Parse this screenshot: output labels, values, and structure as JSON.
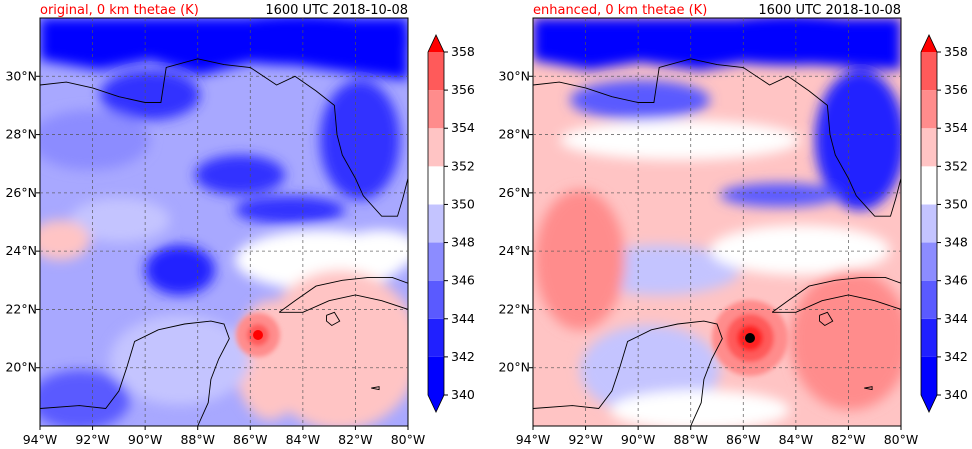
{
  "panels": [
    {
      "title": "original, 0 km thetae (K)",
      "time": "1600 UTC 2018-10-08",
      "storm_center": {
        "lon": -85.8,
        "lat": 21.3
      }
    },
    {
      "title": "enhanced, 0 km thetae (K)",
      "time": "1600 UTC 2018-10-08",
      "storm_center": {
        "lon": -85.8,
        "lat": 21.1
      }
    }
  ],
  "map": {
    "lon_range": [
      -94,
      -80
    ],
    "lat_range": [
      18,
      32
    ],
    "lon_ticks": [
      -94,
      -92,
      -90,
      -88,
      -86,
      -84,
      -82,
      -80
    ],
    "lon_labels": [
      "94°W",
      "92°W",
      "90°W",
      "88°W",
      "86°W",
      "84°W",
      "82°W",
      "80°W"
    ],
    "lat_ticks": [
      20,
      22,
      24,
      26,
      28,
      30
    ],
    "lat_labels": [
      "20°N",
      "22°N",
      "24°N",
      "26°N",
      "28°N",
      "30°N"
    ],
    "grid": true
  },
  "colorbar": {
    "levels": [
      340,
      342,
      344,
      346,
      348,
      350,
      352,
      354,
      356,
      358
    ],
    "labels": [
      "340",
      "342",
      "344",
      "346",
      "348",
      "350",
      "352",
      "354",
      "356",
      "358"
    ],
    "colors": [
      "#0000ff",
      "#2020ff",
      "#5a5aff",
      "#8c8cff",
      "#c4c4ff",
      "#ffffff",
      "#ffc4c4",
      "#ff8c8c",
      "#ff5a5a",
      "#ff2020"
    ],
    "extend_low": "#0000ff",
    "extend_high": "#ff0000"
  }
}
